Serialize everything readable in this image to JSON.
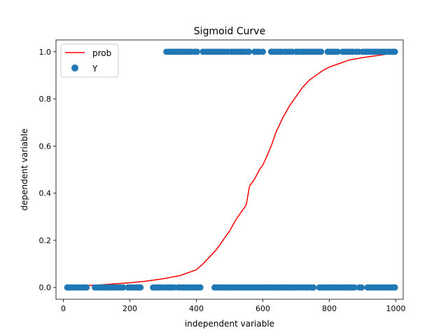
{
  "chart_data": {
    "type": "scatter",
    "title": "Sigmoid Curve",
    "xlabel": "independent variable",
    "ylabel": "dependent variable",
    "xlim": [
      -22,
      1022
    ],
    "ylim": [
      -0.05,
      1.05
    ],
    "xticks": [
      0,
      200,
      400,
      600,
      800,
      1000
    ],
    "yticks": [
      0.0,
      0.2,
      0.4,
      0.6,
      0.8,
      1.0
    ],
    "xtick_labels": [
      "0",
      "200",
      "400",
      "600",
      "800",
      "1000"
    ],
    "ytick_labels": [
      "0.0",
      "0.2",
      "0.4",
      "0.6",
      "0.8",
      "1.0"
    ],
    "grid": false,
    "legend_position": "upper-left",
    "series": [
      {
        "name": "prob",
        "kind": "line",
        "color": "#ff0000",
        "points": [
          [
            10,
            0.003
          ],
          [
            50,
            0.007
          ],
          [
            100,
            0.01
          ],
          [
            150,
            0.015
          ],
          [
            200,
            0.02
          ],
          [
            250,
            0.027
          ],
          [
            300,
            0.037
          ],
          [
            330,
            0.045
          ],
          [
            350,
            0.05
          ],
          [
            380,
            0.065
          ],
          [
            400,
            0.075
          ],
          [
            420,
            0.1
          ],
          [
            440,
            0.13
          ],
          [
            460,
            0.16
          ],
          [
            480,
            0.2
          ],
          [
            500,
            0.24
          ],
          [
            520,
            0.29
          ],
          [
            540,
            0.33
          ],
          [
            550,
            0.35
          ],
          [
            560,
            0.43
          ],
          [
            575,
            0.46
          ],
          [
            590,
            0.5
          ],
          [
            600,
            0.52
          ],
          [
            610,
            0.55
          ],
          [
            625,
            0.6
          ],
          [
            640,
            0.66
          ],
          [
            660,
            0.72
          ],
          [
            680,
            0.77
          ],
          [
            700,
            0.81
          ],
          [
            720,
            0.85
          ],
          [
            740,
            0.88
          ],
          [
            760,
            0.9
          ],
          [
            780,
            0.92
          ],
          [
            800,
            0.935
          ],
          [
            830,
            0.95
          ],
          [
            860,
            0.965
          ],
          [
            900,
            0.975
          ],
          [
            950,
            0.985
          ],
          [
            995,
            0.995
          ]
        ]
      },
      {
        "name": "Y",
        "kind": "scatter",
        "color": "#1f77b4",
        "points": [
          [
            12,
            0
          ],
          [
            18,
            0
          ],
          [
            25,
            0
          ],
          [
            30,
            0
          ],
          [
            38,
            0
          ],
          [
            45,
            0
          ],
          [
            55,
            0
          ],
          [
            62,
            0
          ],
          [
            70,
            0
          ],
          [
            95,
            0
          ],
          [
            100,
            0
          ],
          [
            108,
            0
          ],
          [
            115,
            0
          ],
          [
            122,
            0
          ],
          [
            130,
            0
          ],
          [
            135,
            0
          ],
          [
            142,
            0
          ],
          [
            150,
            0
          ],
          [
            158,
            0
          ],
          [
            165,
            0
          ],
          [
            172,
            0
          ],
          [
            180,
            0
          ],
          [
            195,
            0
          ],
          [
            202,
            0
          ],
          [
            210,
            0
          ],
          [
            218,
            0
          ],
          [
            225,
            0
          ],
          [
            232,
            0
          ],
          [
            270,
            0
          ],
          [
            278,
            0
          ],
          [
            285,
            0
          ],
          [
            292,
            0
          ],
          [
            300,
            0
          ],
          [
            310,
            0
          ],
          [
            318,
            0
          ],
          [
            325,
            0
          ],
          [
            333,
            0
          ],
          [
            345,
            0
          ],
          [
            352,
            0
          ],
          [
            360,
            0
          ],
          [
            368,
            0
          ],
          [
            375,
            0
          ],
          [
            382,
            0
          ],
          [
            390,
            0
          ],
          [
            398,
            0
          ],
          [
            405,
            0
          ],
          [
            412,
            0
          ],
          [
            455,
            0
          ],
          [
            462,
            0
          ],
          [
            470,
            0
          ],
          [
            477,
            0
          ],
          [
            485,
            0
          ],
          [
            492,
            0
          ],
          [
            500,
            0
          ],
          [
            507,
            0
          ],
          [
            515,
            0
          ],
          [
            522,
            0
          ],
          [
            530,
            0
          ],
          [
            537,
            0
          ],
          [
            545,
            0
          ],
          [
            552,
            0
          ],
          [
            560,
            0
          ],
          [
            567,
            0
          ],
          [
            575,
            0
          ],
          [
            582,
            0
          ],
          [
            590,
            0
          ],
          [
            597,
            0
          ],
          [
            605,
            0
          ],
          [
            612,
            0
          ],
          [
            620,
            0
          ],
          [
            627,
            0
          ],
          [
            635,
            0
          ],
          [
            642,
            0
          ],
          [
            650,
            0
          ],
          [
            657,
            0
          ],
          [
            665,
            0
          ],
          [
            672,
            0
          ],
          [
            680,
            0
          ],
          [
            688,
            0
          ],
          [
            695,
            0
          ],
          [
            702,
            0
          ],
          [
            710,
            0
          ],
          [
            720,
            0
          ],
          [
            728,
            0
          ],
          [
            735,
            0
          ],
          [
            745,
            0
          ],
          [
            752,
            0
          ],
          [
            770,
            0
          ],
          [
            778,
            0
          ],
          [
            785,
            0
          ],
          [
            793,
            0
          ],
          [
            800,
            0
          ],
          [
            808,
            0
          ],
          [
            815,
            0
          ],
          [
            822,
            0
          ],
          [
            830,
            0
          ],
          [
            838,
            0
          ],
          [
            845,
            0
          ],
          [
            852,
            0
          ],
          [
            860,
            0
          ],
          [
            867,
            0
          ],
          [
            875,
            0
          ],
          [
            890,
            0
          ],
          [
            897,
            0
          ],
          [
            915,
            0
          ],
          [
            922,
            0
          ],
          [
            930,
            0
          ],
          [
            937,
            0
          ],
          [
            945,
            0
          ],
          [
            952,
            0
          ],
          [
            960,
            0
          ],
          [
            967,
            0
          ],
          [
            975,
            0
          ],
          [
            982,
            0
          ],
          [
            990,
            0
          ],
          [
            997,
            0
          ],
          [
            310,
            1
          ],
          [
            318,
            1
          ],
          [
            325,
            1
          ],
          [
            333,
            1
          ],
          [
            340,
            1
          ],
          [
            348,
            1
          ],
          [
            355,
            1
          ],
          [
            362,
            1
          ],
          [
            370,
            1
          ],
          [
            378,
            1
          ],
          [
            385,
            1
          ],
          [
            395,
            1
          ],
          [
            402,
            1
          ],
          [
            420,
            1
          ],
          [
            428,
            1
          ],
          [
            435,
            1
          ],
          [
            442,
            1
          ],
          [
            450,
            1
          ],
          [
            458,
            1
          ],
          [
            465,
            1
          ],
          [
            472,
            1
          ],
          [
            480,
            1
          ],
          [
            487,
            1
          ],
          [
            495,
            1
          ],
          [
            505,
            1
          ],
          [
            512,
            1
          ],
          [
            520,
            1
          ],
          [
            528,
            1
          ],
          [
            535,
            1
          ],
          [
            542,
            1
          ],
          [
            550,
            1
          ],
          [
            558,
            1
          ],
          [
            575,
            1
          ],
          [
            582,
            1
          ],
          [
            590,
            1
          ],
          [
            600,
            1
          ],
          [
            625,
            1
          ],
          [
            632,
            1
          ],
          [
            640,
            1
          ],
          [
            648,
            1
          ],
          [
            655,
            1
          ],
          [
            665,
            1
          ],
          [
            672,
            1
          ],
          [
            680,
            1
          ],
          [
            688,
            1
          ],
          [
            700,
            1
          ],
          [
            707,
            1
          ],
          [
            715,
            1
          ],
          [
            722,
            1
          ],
          [
            730,
            1
          ],
          [
            737,
            1
          ],
          [
            745,
            1
          ],
          [
            752,
            1
          ],
          [
            760,
            1
          ],
          [
            767,
            1
          ],
          [
            775,
            1
          ],
          [
            795,
            1
          ],
          [
            802,
            1
          ],
          [
            810,
            1
          ],
          [
            818,
            1
          ],
          [
            825,
            1
          ],
          [
            840,
            1
          ],
          [
            847,
            1
          ],
          [
            855,
            1
          ],
          [
            862,
            1
          ],
          [
            870,
            1
          ],
          [
            880,
            1
          ],
          [
            888,
            1
          ],
          [
            900,
            1
          ],
          [
            908,
            1
          ],
          [
            915,
            1
          ],
          [
            922,
            1
          ],
          [
            930,
            1
          ],
          [
            937,
            1
          ],
          [
            945,
            1
          ],
          [
            952,
            1
          ],
          [
            960,
            1
          ],
          [
            967,
            1
          ],
          [
            975,
            1
          ],
          [
            982,
            1
          ],
          [
            990,
            1
          ],
          [
            997,
            1
          ]
        ]
      }
    ]
  }
}
